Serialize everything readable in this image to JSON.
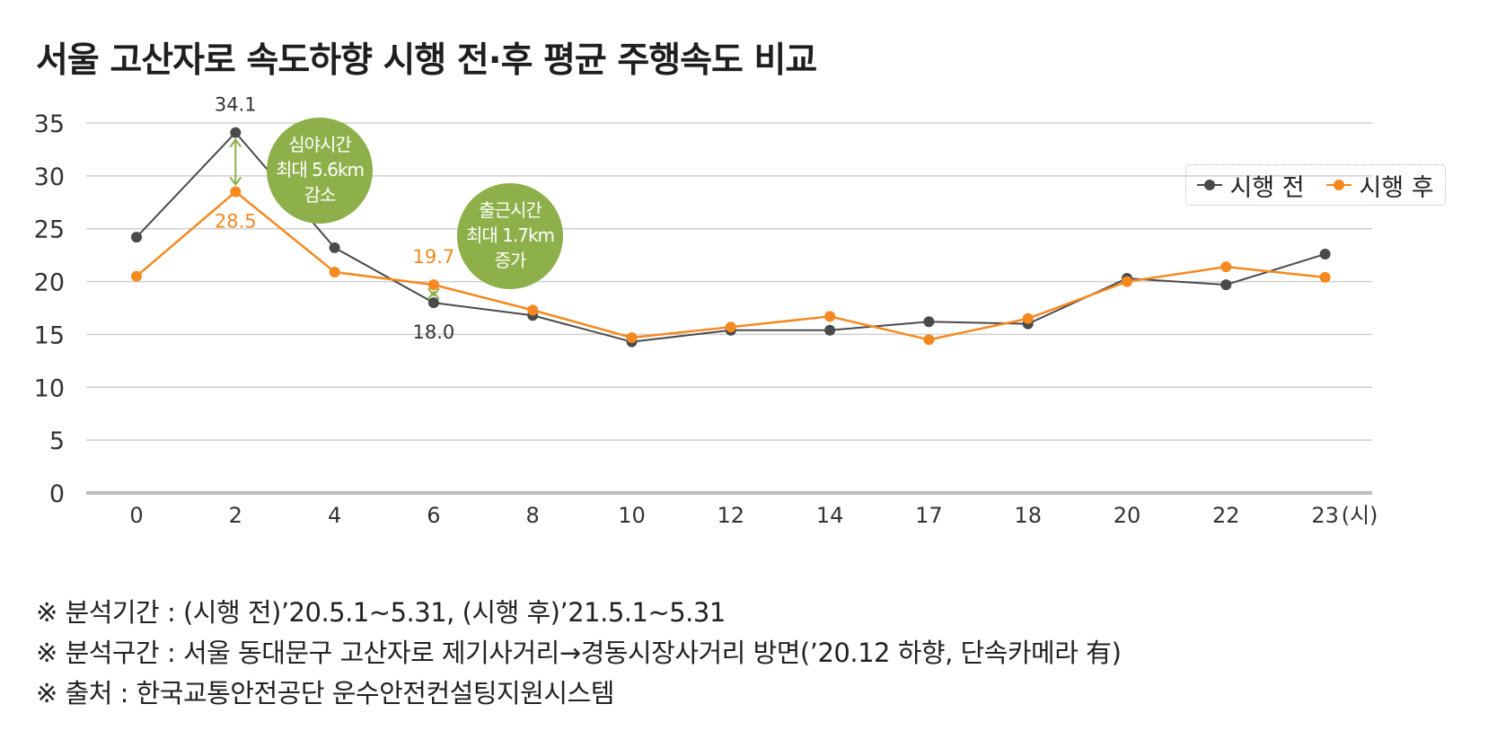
{
  "title": "서울 고산자로 속도하향 시행 전·후 평균 주행속도 비교",
  "colors": {
    "before": "#4a4a4a",
    "after": "#f5891f",
    "annotation": "#8db04a"
  },
  "chart_data": {
    "type": "line",
    "title": "서울 고산자로 속도하향 시행 전·후 평균 주행속도 비교",
    "categories": [
      "0",
      "2",
      "4",
      "6",
      "8",
      "10",
      "12",
      "14",
      "17",
      "18",
      "20",
      "22",
      "23"
    ],
    "x_unit_label": "(시)",
    "ylim": [
      0,
      35
    ],
    "yticks": [
      0,
      5,
      10,
      15,
      20,
      25,
      30,
      35
    ],
    "grid": true,
    "legend_position": "top-right",
    "series": [
      {
        "name": "시행 전",
        "color": "#4a4a4a",
        "values": [
          24.2,
          34.1,
          23.2,
          18.0,
          16.8,
          14.3,
          15.4,
          15.4,
          16.2,
          16.0,
          20.3,
          19.7,
          22.6
        ]
      },
      {
        "name": "시행 후",
        "color": "#f5891f",
        "values": [
          20.5,
          28.5,
          20.9,
          19.7,
          17.3,
          14.7,
          15.7,
          16.7,
          14.5,
          16.5,
          20.0,
          21.4,
          20.4
        ]
      }
    ],
    "data_labels": [
      {
        "text": "34.1",
        "series": 0,
        "index": 1
      },
      {
        "text": "28.5",
        "series": 1,
        "index": 1
      },
      {
        "text": "19.7",
        "series": 1,
        "index": 3
      },
      {
        "text": "18.0",
        "series": 0,
        "index": 3
      }
    ],
    "annotations": [
      {
        "lines": [
          "심야시간",
          "최대 5.6km",
          "감소"
        ],
        "index": 1
      },
      {
        "lines": [
          "출근시간",
          "최대 1.7km",
          "증가"
        ],
        "index": 3
      }
    ]
  },
  "notes": [
    "※ 분석기간 : (시행 전)’20.5.1~5.31, (시행 후)’21.5.1~5.31",
    "※ 분석구간 : 서울 동대문구 고산자로 제기사거리→경동시장사거리 방면(’20.12 하향, 단속카메라 有)",
    "※ 출처 : 한국교통안전공단 운수안전컨설팅지원시스템"
  ]
}
